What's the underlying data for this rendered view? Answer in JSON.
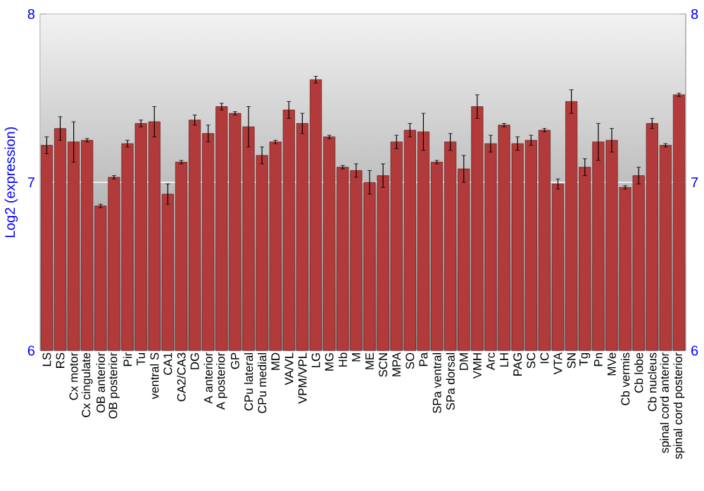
{
  "chart_data": {
    "type": "bar",
    "ylabel": "Log2 (expression)",
    "categories": [
      "LS",
      "RS",
      "Cx motor",
      "Cx cingulate",
      "OB anterior",
      "OB posterior",
      "Pir",
      "Tu",
      "ventral S",
      "CA1",
      "CA2/CA3",
      "DG",
      "A anterior",
      "A posterior",
      "GP",
      "CPu lateral",
      "CPu medial",
      "MD",
      "VA/VL",
      "VPM/VPL",
      "LG",
      "MG",
      "Hb",
      "M",
      "ME",
      "SCN",
      "MPA",
      "SO",
      "Pa",
      "SPa ventral",
      "SPa dorsal",
      "DM",
      "VMH",
      "Arc",
      "LH",
      "PAG",
      "SC",
      "IC",
      "VTA",
      "SN",
      "Tg",
      "Pn",
      "MVe",
      "Cb vermis",
      "Cb lobe",
      "Cb nucleus",
      "spinal cord anterior",
      "spinal cord posterior"
    ],
    "values": [
      7.22,
      7.32,
      7.24,
      7.25,
      6.86,
      7.03,
      7.23,
      7.35,
      7.36,
      6.93,
      7.12,
      7.37,
      7.29,
      7.45,
      7.41,
      7.33,
      7.16,
      7.24,
      7.43,
      7.35,
      7.61,
      7.27,
      7.09,
      7.07,
      7.0,
      7.04,
      7.24,
      7.31,
      7.3,
      7.12,
      7.24,
      7.08,
      7.45,
      7.23,
      7.34,
      7.23,
      7.25,
      7.31,
      6.99,
      7.48,
      7.09,
      7.24,
      7.25,
      6.97,
      7.04,
      7.35,
      7.22,
      7.52
    ],
    "errors": [
      0.05,
      0.07,
      0.12,
      0.01,
      0.01,
      0.01,
      0.02,
      0.02,
      0.09,
      0.06,
      0.01,
      0.03,
      0.05,
      0.02,
      0.01,
      0.12,
      0.05,
      0.01,
      0.05,
      0.06,
      0.02,
      0.01,
      0.01,
      0.04,
      0.07,
      0.07,
      0.04,
      0.04,
      0.11,
      0.01,
      0.05,
      0.08,
      0.07,
      0.05,
      0.01,
      0.04,
      0.03,
      0.01,
      0.03,
      0.07,
      0.05,
      0.11,
      0.07,
      0.01,
      0.05,
      0.03,
      0.01,
      0.01
    ],
    "color": "#b33a3a",
    "ylim": [
      6,
      8
    ],
    "yticks": [
      6,
      7,
      8
    ],
    "y2lim": [
      6,
      8
    ],
    "y2ticks": [
      6,
      7,
      8
    ],
    "grid": "y"
  }
}
